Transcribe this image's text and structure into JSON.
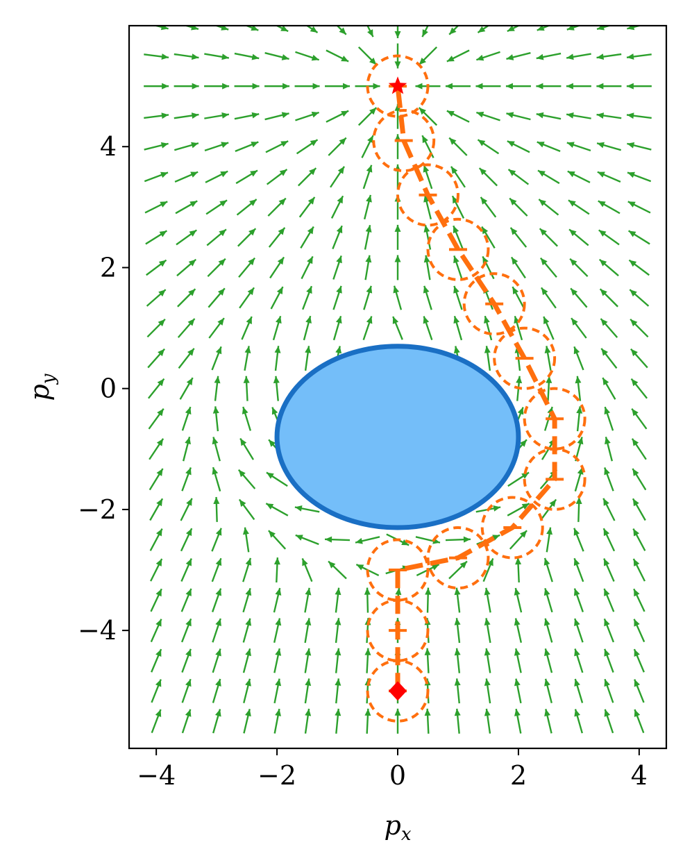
{
  "chart_data": {
    "type": "scatter",
    "subtype": "vector-field",
    "title": "",
    "xlabel": {
      "base": "p",
      "sub": "x"
    },
    "ylabel": {
      "base": "p",
      "sub": "y"
    },
    "xlim": [
      -4.45,
      4.45
    ],
    "ylim": [
      -5.95,
      6.0
    ],
    "xticks": [
      {
        "value": -4,
        "label": "−4"
      },
      {
        "value": -2,
        "label": "−2"
      },
      {
        "value": 0,
        "label": "0"
      },
      {
        "value": 2,
        "label": "2"
      },
      {
        "value": 4,
        "label": "4"
      }
    ],
    "yticks": [
      {
        "value": -4,
        "label": "−4"
      },
      {
        "value": -2,
        "label": "−2"
      },
      {
        "value": 0,
        "label": "0"
      },
      {
        "value": 2,
        "label": "2"
      },
      {
        "value": 4,
        "label": "4"
      }
    ],
    "grid": false,
    "vector_field": {
      "color": "#2ca02c",
      "x_start": -4.0,
      "x_step": 0.5,
      "x_count": 17,
      "y_start": -5.5,
      "y_step": 0.5,
      "y_count": 24,
      "goal": [
        0,
        5
      ],
      "obstacle_influence_radius": 1.3
    },
    "obstacle": {
      "shape": "ellipse",
      "center": [
        0,
        -0.8
      ],
      "semi_axes": [
        2.0,
        1.5
      ],
      "fill": "#74bef9",
      "edge": "#1a6fc4"
    },
    "trajectory": {
      "color": "#ff6f0e",
      "circle_radius": 0.5,
      "points": [
        [
          0,
          -5.0
        ],
        [
          0,
          -4.0
        ],
        [
          0,
          -3.0
        ],
        [
          1.0,
          -2.8
        ],
        [
          1.9,
          -2.3
        ],
        [
          2.6,
          -1.5
        ],
        [
          2.6,
          -0.5
        ],
        [
          2.1,
          0.5
        ],
        [
          1.6,
          1.4
        ],
        [
          1.0,
          2.3
        ],
        [
          0.5,
          3.2
        ],
        [
          0.1,
          4.1
        ],
        [
          0,
          5.0
        ]
      ]
    },
    "start_marker": {
      "point": [
        0,
        -5.0
      ],
      "shape": "diamond",
      "color": "#ff0000"
    },
    "goal_marker": {
      "point": [
        0,
        5.0
      ],
      "shape": "star",
      "color": "#ff0000"
    }
  }
}
